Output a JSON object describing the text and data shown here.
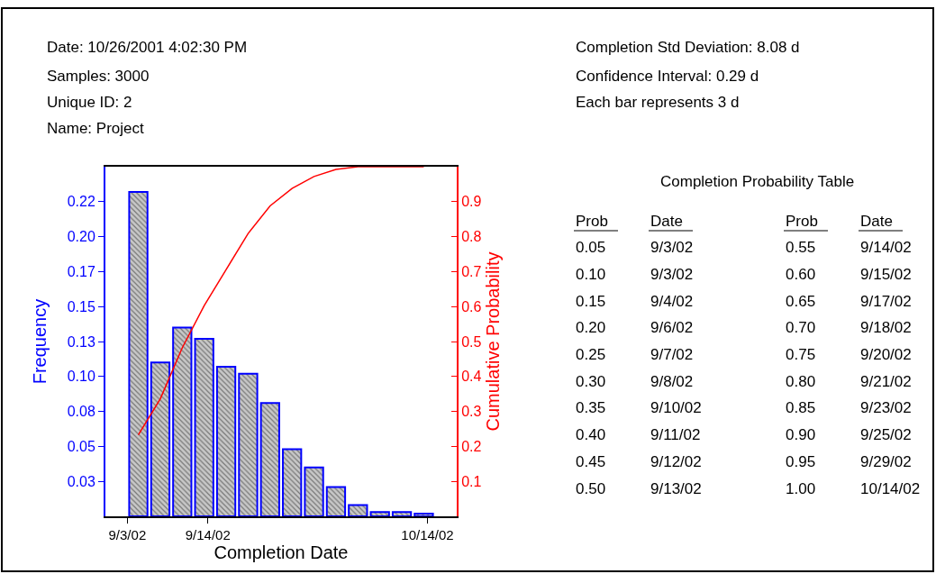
{
  "chart_data": {
    "type": "bar",
    "xlabel": "Completion Date",
    "ylabel": "Frequency",
    "y2label": "Cumulative Probability",
    "x": [
      "2002-09-04T12:00",
      "2002-09-07T12:00",
      "2002-09-10T12:00",
      "2002-09-13T12:00",
      "2002-09-16T12:00",
      "2002-09-19T12:00",
      "2002-09-22T12:00",
      "2002-09-25T12:00",
      "2002-09-28T12:00",
      "2002-10-01T12:00",
      "2002-10-04T12:00",
      "2002-10-07T12:00",
      "2002-10-10T12:00",
      "2002-10-13T12:00"
    ],
    "series": [
      {
        "color": "#0000ff",
        "values": [
          0.232,
          0.11,
          0.135,
          0.127,
          0.107,
          0.102,
          0.081,
          0.048,
          0.035,
          0.021,
          0.008,
          0.003,
          0.003,
          0.002
        ]
      },
      {
        "type": "line",
        "axis": "y2",
        "color": "#ff0000",
        "values": [
          0.233,
          0.336,
          0.482,
          0.603,
          0.706,
          0.809,
          0.888,
          0.938,
          0.972,
          0.992,
          1.0,
          1.0,
          1.0,
          1.0
        ]
      }
    ],
    "xlim": [
      "2002-08-31",
      "2002-10-18"
    ],
    "xticks": [
      {
        "value": "2002-09-03",
        "label": "9/3/02"
      },
      {
        "value": "2002-09-14",
        "label": "9/14/02"
      },
      {
        "value": "2002-10-14",
        "label": "10/14/02"
      }
    ],
    "ylim": [
      0,
      0.25
    ],
    "yticks": [
      {
        "value": 0.025,
        "label": "0.03"
      },
      0.05,
      {
        "value": 0.075,
        "label": "0.08"
      },
      {
        "value": 0.1,
        "label": "0.10"
      },
      {
        "value": 0.125,
        "label": "0.13"
      },
      0.15,
      {
        "value": 0.175,
        "label": "0.17"
      },
      {
        "value": 0.2,
        "label": "0.20"
      },
      {
        "value": 0.225,
        "label": "0.22"
      }
    ],
    "y2lim": [
      0,
      1
    ],
    "y2ticks": [
      0.1,
      0.2,
      0.3,
      0.4,
      0.5,
      0.6,
      0.7,
      0.8,
      0.9
    ],
    "grid": false,
    "legend": false,
    "marker": "none",
    "line_style": "solid",
    "annotations": [
      "Date: 10/26/2001 4:02:30 PM",
      "Samples: 3000",
      "Unique ID: 2",
      "Name: Project",
      "Completion Std Deviation: 8.08 d",
      "Confidence Interval: 0.29 d",
      "Each bar represents 3 d",
      "Completion Probability Table",
      "Prob",
      "Date",
      "Prob",
      "Date",
      "0.05",
      "9/3/02",
      "0.55",
      "9/14/02",
      "0.10",
      "9/3/02",
      "0.60",
      "9/15/02",
      "0.15",
      "9/4/02",
      "0.65",
      "9/17/02",
      "0.20",
      "9/6/02",
      "0.70",
      "9/18/02",
      "0.25",
      "9/7/02",
      "0.75",
      "9/20/02",
      "0.30",
      "9/8/02",
      "0.80",
      "9/21/02",
      "0.35",
      "9/10/02",
      "0.85",
      "9/23/02",
      "0.40",
      "9/11/02",
      "0.90",
      "9/25/02",
      "0.45",
      "9/12/02",
      "0.95",
      "9/29/02",
      "0.50",
      "9/13/02",
      "1.00",
      "10/14/02"
    ]
  }
}
